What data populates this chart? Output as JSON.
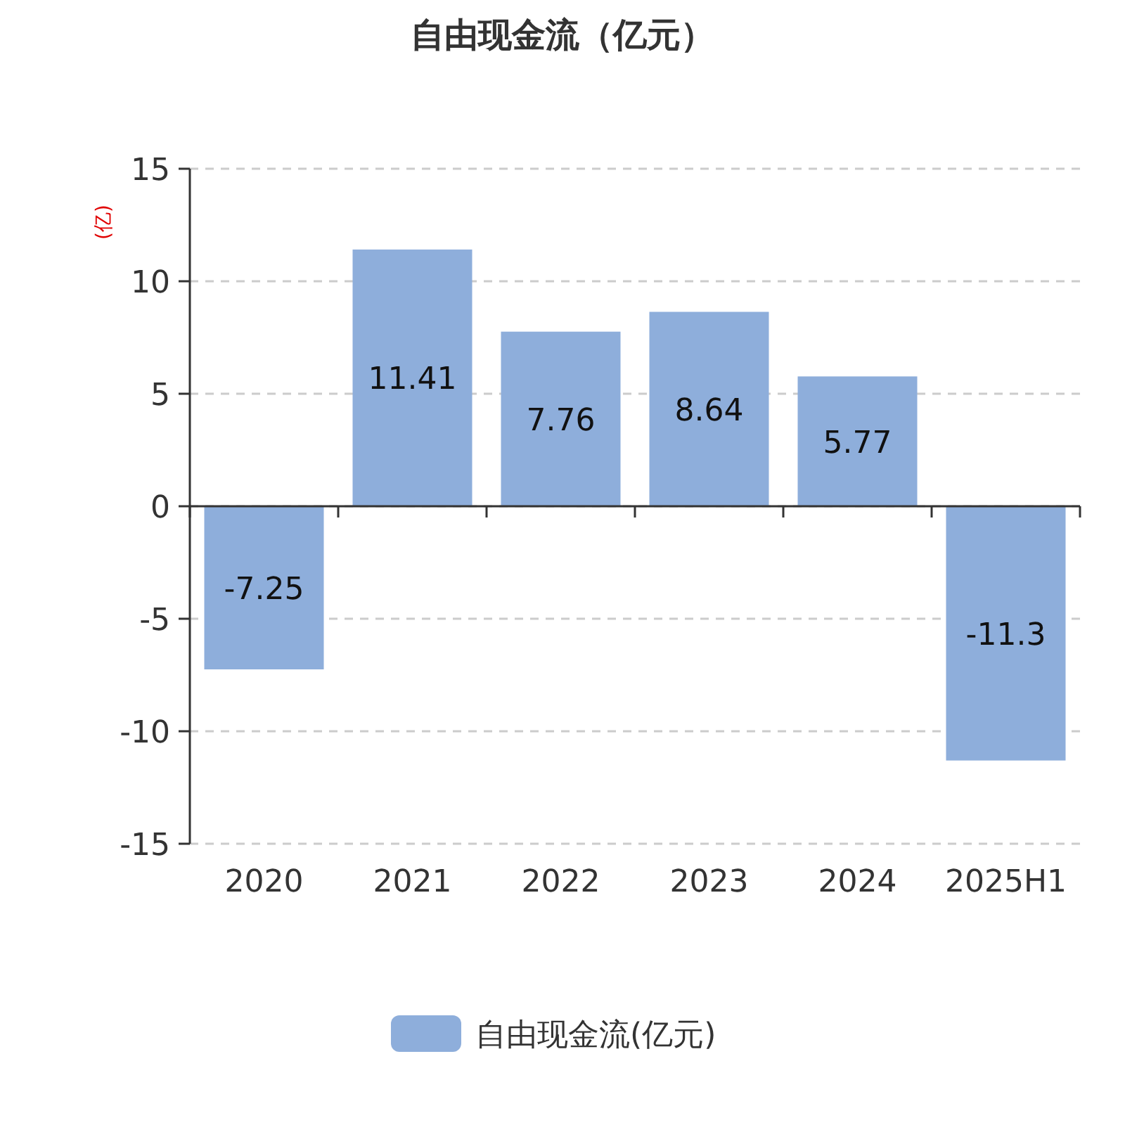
{
  "chart_data": {
    "type": "bar",
    "title": "自由现金流（亿元）",
    "ylabel": "(亿)",
    "categories": [
      "2020",
      "2021",
      "2022",
      "2023",
      "2024",
      "2025H1"
    ],
    "series": [
      {
        "name": "自由现金流(亿元)",
        "color": "#8eaedb",
        "values": [
          -7.25,
          11.41,
          7.76,
          8.64,
          5.77,
          -11.3
        ]
      }
    ],
    "ylim": [
      -15,
      15
    ],
    "yticks": [
      -15,
      -10,
      -5,
      0,
      5,
      10,
      15
    ],
    "grid": "y",
    "legend": "bottom",
    "data_labels": true
  }
}
